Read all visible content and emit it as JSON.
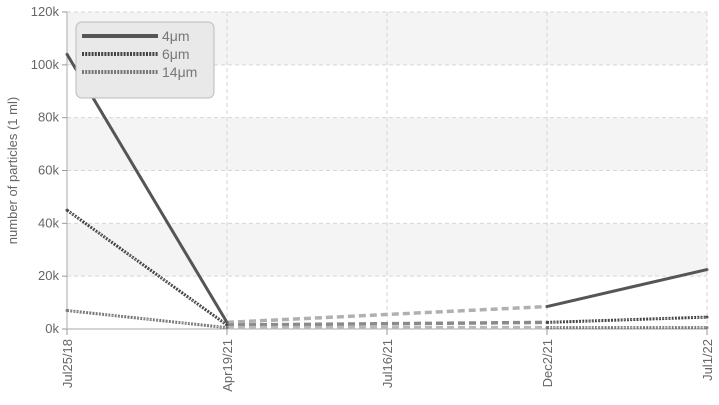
{
  "chart_data": {
    "type": "line",
    "title": "",
    "xlabel": "",
    "ylabel": "number of particles (1 ml)",
    "x": [
      "Jul25/18",
      "Apr19/21",
      "Jul16/21",
      "Dec2/21",
      "Jul1/22"
    ],
    "ylim": [
      0,
      120000
    ],
    "yticks": [
      0,
      20000,
      40000,
      60000,
      80000,
      100000,
      120000
    ],
    "ytick_labels": [
      "0k",
      "20k",
      "40k",
      "60k",
      "80k",
      "100k",
      "120k"
    ],
    "grid": true,
    "legend_position": "top-left",
    "series": [
      {
        "name": "4μm",
        "color": "#555555",
        "style": "solid",
        "values": [
          104000,
          2500,
          null,
          8500,
          22500
        ],
        "dashed_gaps": true
      },
      {
        "name": "6μm",
        "color": "#444444",
        "style": "dotted",
        "values": [
          45000,
          1500,
          null,
          2500,
          4500
        ],
        "dashed_gaps": true
      },
      {
        "name": "14μm",
        "color": "#777777",
        "style": "dotted",
        "values": [
          7000,
          500,
          null,
          500,
          500
        ],
        "dashed_gaps": true
      }
    ]
  }
}
